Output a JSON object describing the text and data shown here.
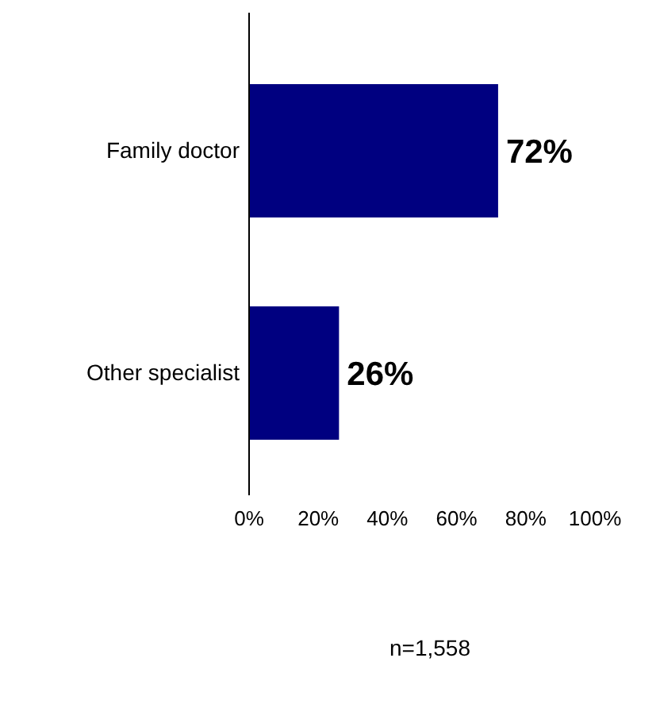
{
  "chart_data": {
    "type": "bar",
    "orientation": "horizontal",
    "categories": [
      "Family doctor",
      "Other specialist"
    ],
    "values": [
      72,
      26
    ],
    "color": "#000080",
    "xlim": [
      0,
      100
    ],
    "xticks": [
      {
        "value": 0,
        "label": "0%"
      },
      {
        "value": 20,
        "label": "20%"
      },
      {
        "value": 40,
        "label": "40%"
      },
      {
        "value": 60,
        "label": "60%"
      },
      {
        "value": 80,
        "label": "80%"
      },
      {
        "value": 100,
        "label": "100%"
      }
    ],
    "value_labels": [
      "72%",
      "26%"
    ],
    "grid": false,
    "annotations": [
      "n=1,558"
    ]
  }
}
